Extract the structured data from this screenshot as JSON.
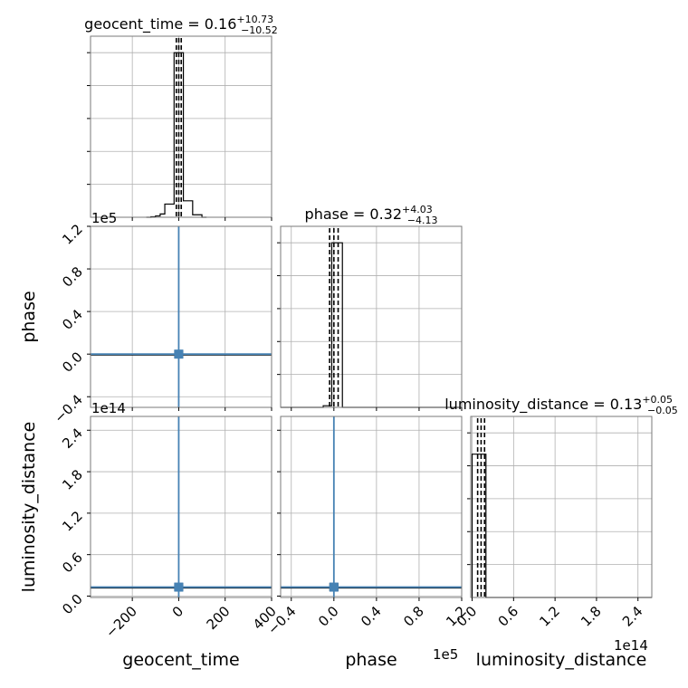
{
  "chart_data": {
    "type": "corner",
    "parameters": [
      "geocent_time",
      "phase",
      "luminosity_distance"
    ],
    "offsets": {
      "phase": "1e5",
      "luminosity_distance": "1e14"
    },
    "colors": {
      "truth": "#4682b4",
      "hist": "#000000",
      "grid": "#b0b0b0"
    },
    "titles": [
      {
        "param": "geocent_time",
        "label": "geocent_time",
        "median": "0.16",
        "plus": "+10.73",
        "minus": "−10.52"
      },
      {
        "param": "phase",
        "label": "phase",
        "median": "0.32",
        "plus": "+4.03",
        "minus": "−4.13"
      },
      {
        "param": "luminosity_distance",
        "label": "luminosity_distance",
        "median": "0.13",
        "plus": "+0.05",
        "minus": "−0.05"
      }
    ],
    "axes": {
      "geocent_time": {
        "range": [
          -380,
          400
        ],
        "ticks": [
          -200,
          0,
          200,
          400
        ],
        "tick_labels": [
          "−200",
          "0",
          "200",
          "400"
        ]
      },
      "phase": {
        "range": [
          -0.5,
          1.2
        ],
        "ticks": [
          -0.4,
          0.0,
          0.4,
          0.8,
          1.2
        ],
        "tick_labels": [
          "−0.4",
          "0.0",
          "0.4",
          "0.8",
          "1.2"
        ]
      },
      "luminosity_distance": {
        "range": [
          -0.02,
          2.6
        ],
        "ticks": [
          0.0,
          0.6,
          1.2,
          1.8,
          2.4
        ],
        "tick_labels": [
          "0.0",
          "0.6",
          "1.2",
          "1.8",
          "2.4"
        ]
      }
    },
    "truths": {
      "geocent_time": 0,
      "phase": 0,
      "luminosity_distance": 0.13
    },
    "quantile_lines": {
      "geocent_time": [
        -10.36,
        0.16,
        10.89
      ],
      "phase": [
        -0.04,
        0.0,
        0.04
      ],
      "luminosity_distance": [
        0.08,
        0.13,
        0.18
      ]
    },
    "histograms": {
      "geocent_time": {
        "edges": [
          -140,
          -120,
          -100,
          -80,
          -60,
          -40,
          -20,
          0,
          20,
          40,
          60,
          80,
          100,
          120
        ],
        "counts": [
          0.0,
          0.003,
          0.008,
          0.02,
          0.08,
          0.08,
          1.0,
          1.0,
          0.1,
          0.1,
          0.015,
          0.015,
          0.0
        ],
        "ylim": [
          0,
          1.1
        ]
      },
      "phase": {
        "edges": [
          -0.5,
          -0.3,
          -0.1,
          -0.02,
          0.0,
          0.08,
          1.2
        ],
        "counts": [
          0.0,
          0.0,
          0.01,
          1.0,
          1.0,
          0.0
        ],
        "ylim": [
          0,
          1.1
        ]
      },
      "luminosity_distance": {
        "edges": [
          0.0,
          0.06,
          0.13,
          0.2,
          2.6
        ],
        "counts": [
          0.95,
          0.95,
          0.95,
          0.0
        ],
        "ylim": [
          0,
          1.2
        ]
      }
    },
    "scatter_blobs": [
      {
        "x": "geocent_time",
        "y": "phase",
        "xspread": 12,
        "yspread": 0.012
      },
      {
        "x": "geocent_time",
        "y": "luminosity_distance",
        "xspread": 12,
        "yspread": 0.025
      },
      {
        "x": "phase",
        "y": "luminosity_distance",
        "xspread": 0.03,
        "yspread": 0.025
      }
    ]
  }
}
